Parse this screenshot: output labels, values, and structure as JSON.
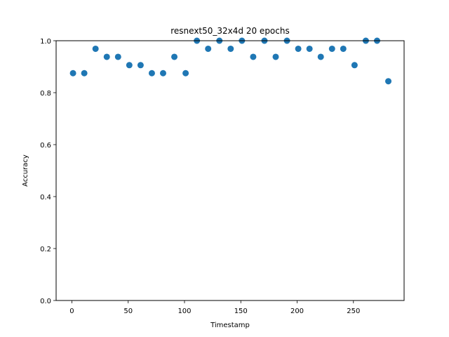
{
  "chart_data": {
    "type": "scatter",
    "title": "resnext50_32x4d  20 epochs",
    "xlabel": "Timestamp",
    "ylabel": "Accuracy",
    "xlim": [
      -14,
      295
    ],
    "ylim": [
      0.0,
      1.0
    ],
    "x_ticks": [
      0,
      50,
      100,
      150,
      200,
      250
    ],
    "y_ticks": [
      0.0,
      0.2,
      0.4,
      0.6,
      0.8,
      1.0
    ],
    "x_tick_labels": [
      "0",
      "50",
      "100",
      "150",
      "200",
      "250"
    ],
    "y_tick_labels": [
      "0.0",
      "0.2",
      "0.4",
      "0.6",
      "0.8",
      "1.0"
    ],
    "grid": false,
    "legend": null,
    "colors": {
      "marker": "#1f77b4"
    },
    "series": [
      {
        "x": [
          1,
          11,
          21,
          31,
          41,
          51,
          61,
          71,
          81,
          91,
          101,
          111,
          121,
          131,
          141,
          151,
          161,
          171,
          181,
          191,
          201,
          211,
          221,
          231,
          241,
          251,
          261,
          271,
          281
        ],
        "y": [
          0.875,
          0.875,
          0.969,
          0.938,
          0.938,
          0.906,
          0.906,
          0.875,
          0.875,
          0.938,
          0.875,
          1.0,
          0.969,
          1.0,
          0.969,
          1.0,
          0.938,
          1.0,
          0.938,
          1.0,
          0.969,
          0.969,
          0.938,
          0.969,
          0.969,
          0.906,
          1.0,
          1.0,
          0.844
        ]
      }
    ]
  }
}
